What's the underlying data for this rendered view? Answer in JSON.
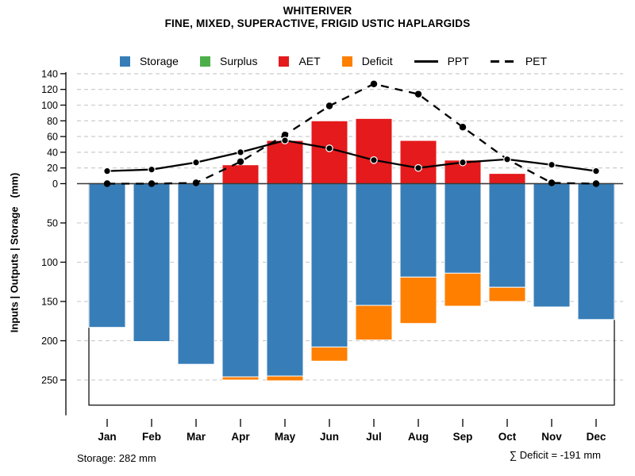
{
  "header": {
    "title": "WHITERIVER",
    "subtitle": "FINE, MIXED, SUPERACTIVE, FRIGID USTIC HAPLARGIDS"
  },
  "y_axis": {
    "label": "Inputs | Outputs | Storage   (mm)",
    "upper_ticks": [
      0,
      20,
      40,
      60,
      80,
      100,
      120,
      140
    ],
    "lower_ticks": [
      50,
      100,
      150,
      200,
      250
    ]
  },
  "footer": {
    "storage_note": "Storage: 282 mm",
    "deficit_note": "∑ Deficit = -191 mm"
  },
  "colors": {
    "storage": "#377EB8",
    "surplus": "#4DAF4A",
    "aet": "#E41A1C",
    "deficit": "#FF7F00",
    "line": "#000000",
    "grid": "#C6C6C6",
    "zero_line": "#3a3a3a"
  },
  "chart_data": {
    "type": "bar",
    "title": "WHITERIVER",
    "subtitle": "FINE, MIXED, SUPERACTIVE, FRIGID USTIC HAPLARGIDS",
    "ylabel": "Inputs | Outputs | Storage   (mm)",
    "categories": [
      "Jan",
      "Feb",
      "Mar",
      "Apr",
      "May",
      "Jun",
      "Jul",
      "Aug",
      "Sep",
      "Oct",
      "Nov",
      "Dec"
    ],
    "bar_series": [
      {
        "name": "Storage",
        "color": "#377EB8",
        "direction": "down",
        "values": [
          183,
          201,
          230,
          246,
          245,
          208,
          155,
          119,
          114,
          132,
          157,
          173
        ]
      },
      {
        "name": "Surplus",
        "color": "#4DAF4A",
        "direction": "up",
        "values": [
          0,
          0,
          0,
          0,
          0,
          0,
          0,
          0,
          0,
          0,
          0,
          0
        ]
      },
      {
        "name": "AET",
        "color": "#E41A1C",
        "direction": "up",
        "values": [
          0,
          0,
          0,
          24,
          55,
          80,
          83,
          55,
          30,
          13,
          0,
          0
        ]
      },
      {
        "name": "Deficit",
        "color": "#FF7F00",
        "direction": "down-stacked-below-storage",
        "values": [
          0,
          0,
          0,
          4,
          6,
          18,
          44,
          59,
          42,
          18,
          0,
          0
        ]
      }
    ],
    "line_series": [
      {
        "name": "PPT",
        "style": "solid",
        "values": [
          16,
          18,
          27,
          40,
          55,
          45,
          30,
          20,
          27,
          31,
          24,
          16
        ]
      },
      {
        "name": "PET",
        "style": "dashed",
        "values": [
          0,
          0,
          1,
          28,
          62,
          99,
          127,
          114,
          72,
          31,
          1,
          0
        ]
      }
    ],
    "units": "mm",
    "ylim_upper": [
      0,
      140
    ],
    "ylim_lower": [
      0,
      282
    ],
    "upper_ticks": [
      0,
      20,
      40,
      60,
      80,
      100,
      120,
      140
    ],
    "lower_ticks": [
      50,
      100,
      150,
      200,
      250
    ],
    "storage_capacity_mm": 282,
    "deficit_total_mm": -191,
    "grid": true,
    "legend_position": "top-center"
  }
}
